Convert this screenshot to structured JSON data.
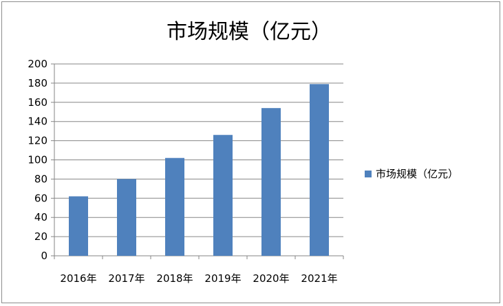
{
  "chart_data": {
    "type": "bar",
    "title": "市场规模（亿元）",
    "categories": [
      "2016年",
      "2017年",
      "2018年",
      "2019年",
      "2020年",
      "2021年"
    ],
    "series": [
      {
        "name": "市场规模（亿元）",
        "values": [
          62,
          80,
          102,
          126,
          154,
          179
        ],
        "color": "#4f81bd"
      }
    ],
    "ylim": [
      0,
      200
    ],
    "yticks": [
      0,
      20,
      40,
      60,
      80,
      100,
      120,
      140,
      160,
      180,
      200
    ],
    "grid": true,
    "legend_position": "right",
    "xlabel": "",
    "ylabel": ""
  }
}
